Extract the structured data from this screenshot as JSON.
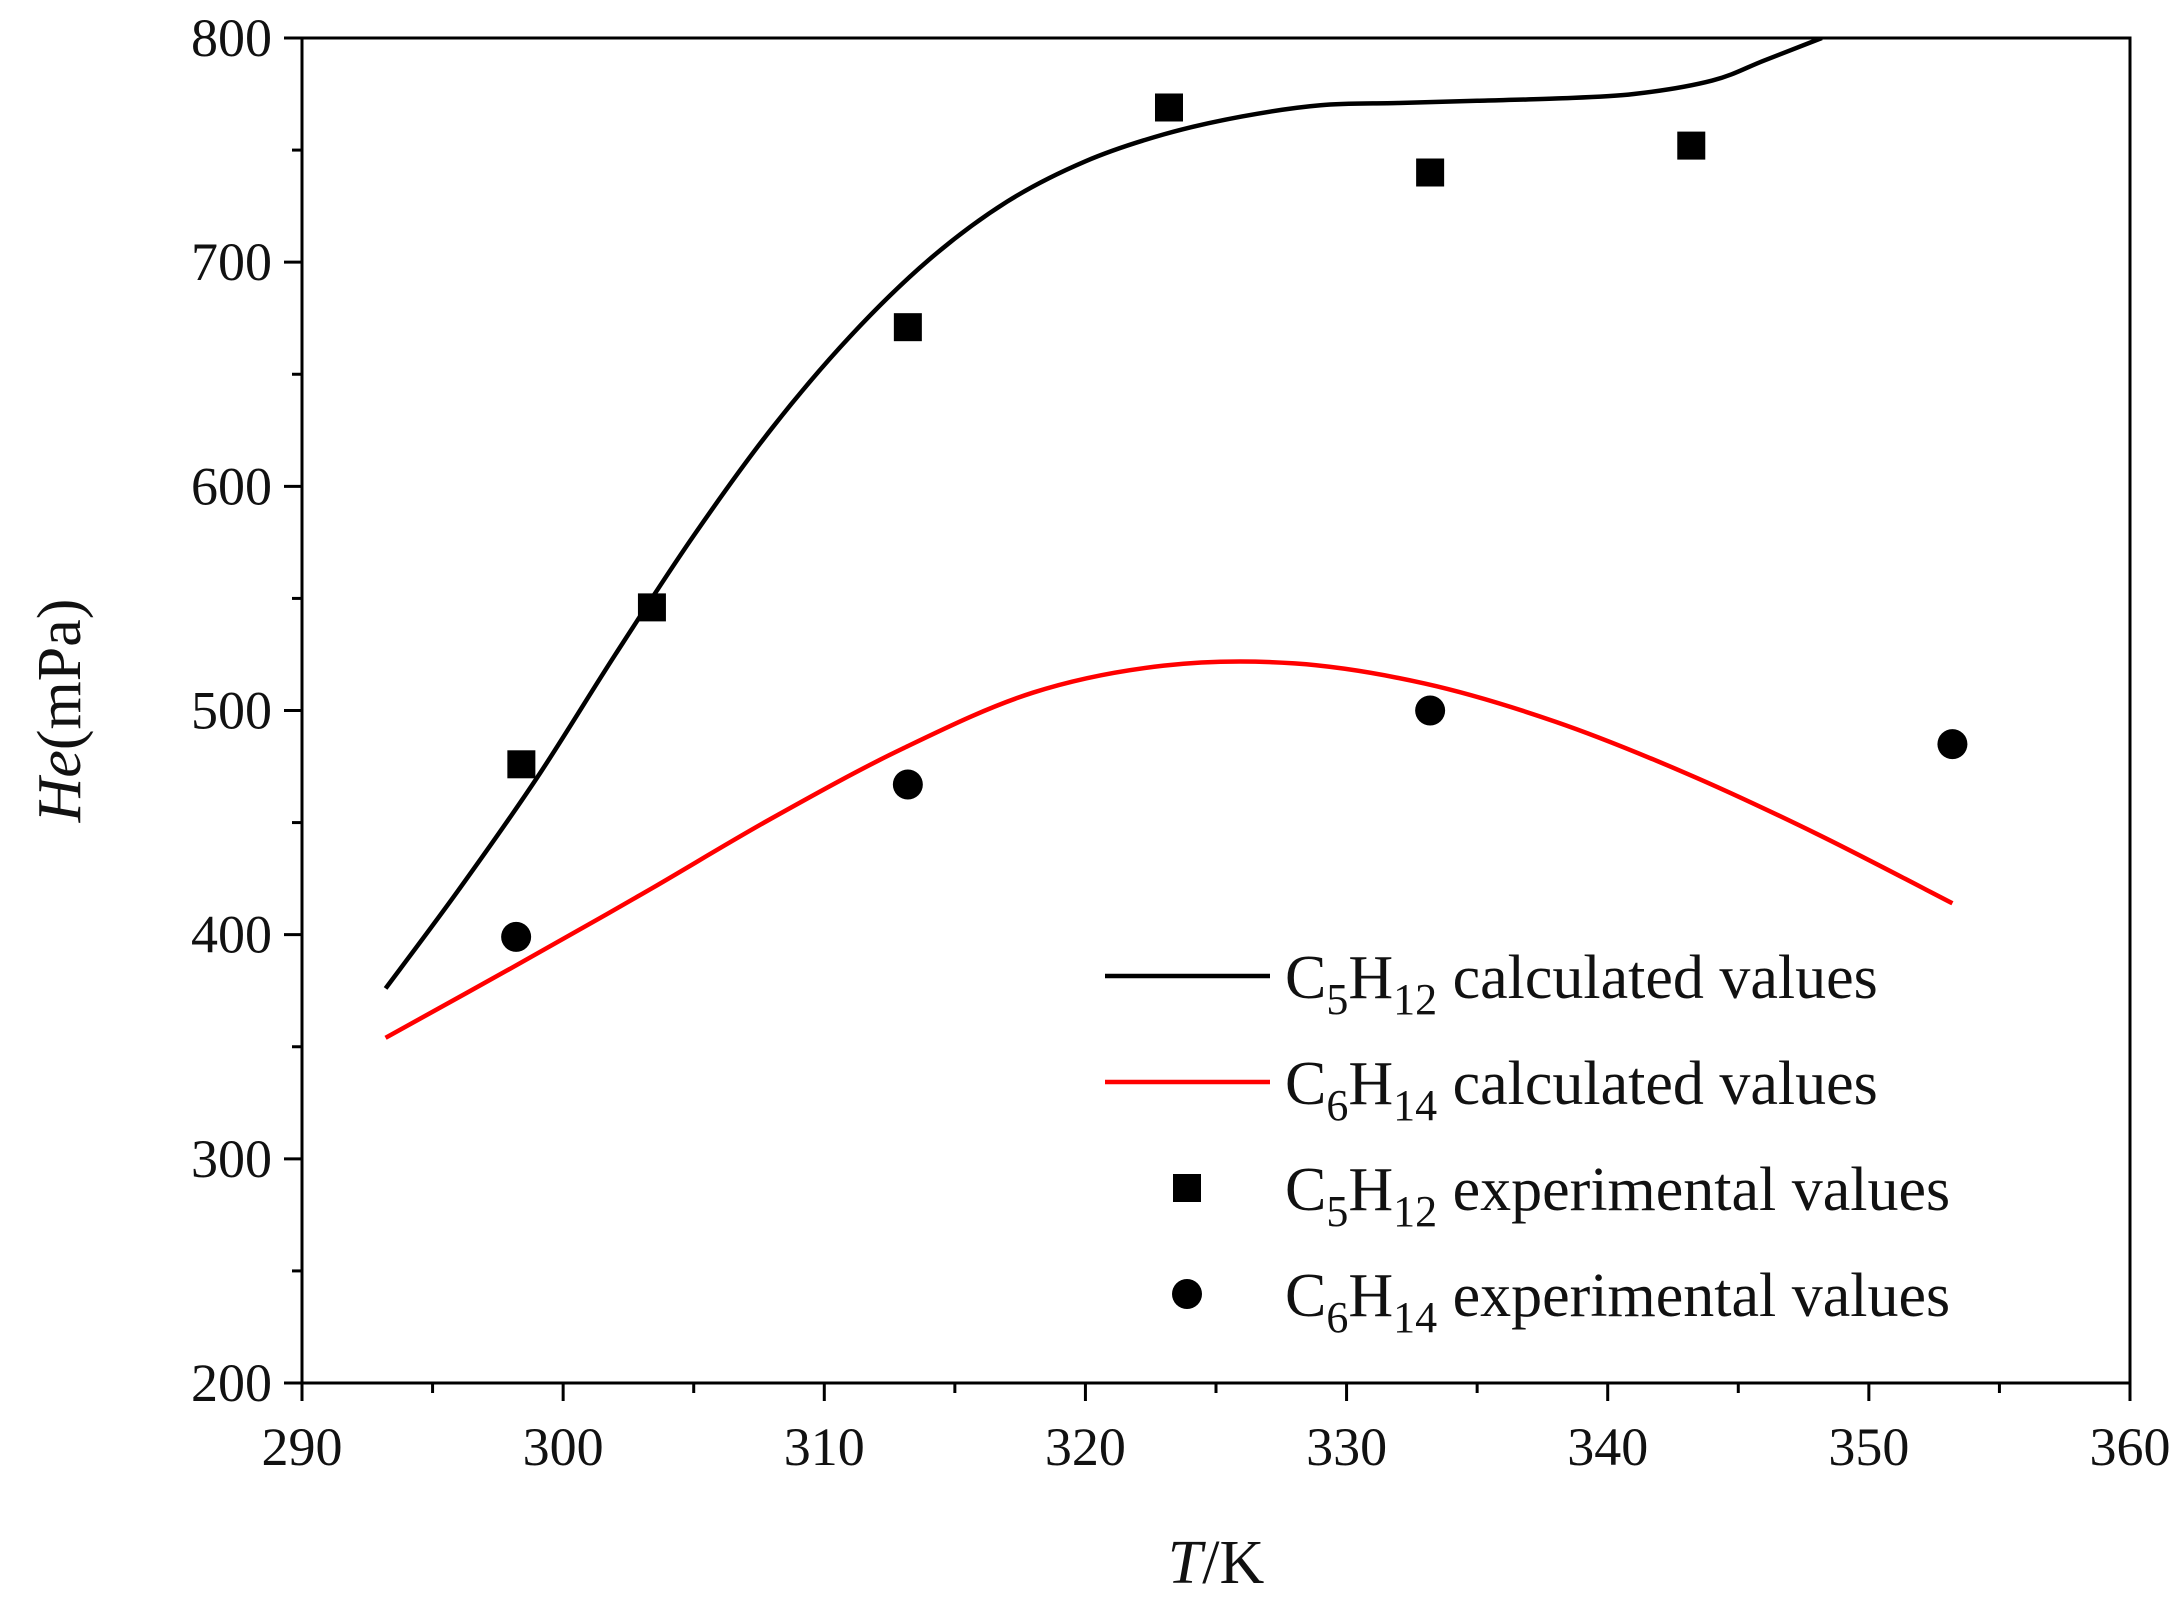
{
  "chart_data": {
    "type": "line",
    "title": "",
    "xlabel": {
      "italic": "T",
      "normal": "/K"
    },
    "ylabel": {
      "italic": "He",
      "normal": "(mPa)"
    },
    "xlim": [
      290,
      360
    ],
    "ylim": [
      200,
      800
    ],
    "xticks": [
      "290",
      "300",
      "310",
      "320",
      "330",
      "340",
      "350",
      "360"
    ],
    "yticks": [
      "200",
      "300",
      "400",
      "500",
      "600",
      "700",
      "800"
    ],
    "grid": false,
    "legend_position": "bottom-right",
    "series": [
      {
        "name": "C5H12 calculated values",
        "legend": {
          "base": "C",
          "sub1": "5",
          "mid": "H",
          "sub2": "12",
          "rest": " calculated values"
        },
        "kind": "line",
        "color": "#000000",
        "x": [
          293.2,
          296,
          299,
          302,
          305,
          308,
          311,
          314,
          317,
          320,
          323,
          326,
          329,
          332,
          335,
          338,
          341,
          344,
          346,
          348.2
        ],
        "y": [
          376,
          420,
          470,
          525,
          578,
          626,
          667,
          701,
          727,
          745,
          757,
          765,
          770,
          771,
          772,
          773,
          775,
          781,
          790,
          800
        ]
      },
      {
        "name": "C6H14 calculated values",
        "legend": {
          "base": "C",
          "sub1": "6",
          "mid": "H",
          "sub2": "14",
          "rest": " calculated values"
        },
        "kind": "line",
        "color": "#ff0000",
        "x": [
          293.2,
          298,
          303,
          308,
          313,
          318,
          323,
          328,
          333,
          338,
          343,
          348,
          353.2
        ],
        "y": [
          354,
          385,
          418,
          452,
          483,
          508,
          520,
          521,
          512,
          495,
          472,
          445,
          414
        ]
      },
      {
        "name": "C5H12 experimental values",
        "legend": {
          "base": "C",
          "sub1": "5",
          "mid": "H",
          "sub2": "12",
          "rest": " experimental values"
        },
        "kind": "scatter",
        "marker": "square",
        "color": "#000000",
        "x": [
          298.4,
          303.4,
          313.2,
          323.2,
          333.2,
          343.2
        ],
        "y": [
          476,
          546,
          671,
          769,
          740,
          752
        ]
      },
      {
        "name": "C6H14 experimental values",
        "legend": {
          "base": "C",
          "sub1": "6",
          "mid": "H",
          "sub2": "14",
          "rest": " experimental values"
        },
        "kind": "scatter",
        "marker": "circle",
        "color": "#000000",
        "x": [
          298.2,
          313.2,
          333.2,
          353.2
        ],
        "y": [
          399,
          467,
          500,
          485
        ]
      }
    ]
  }
}
